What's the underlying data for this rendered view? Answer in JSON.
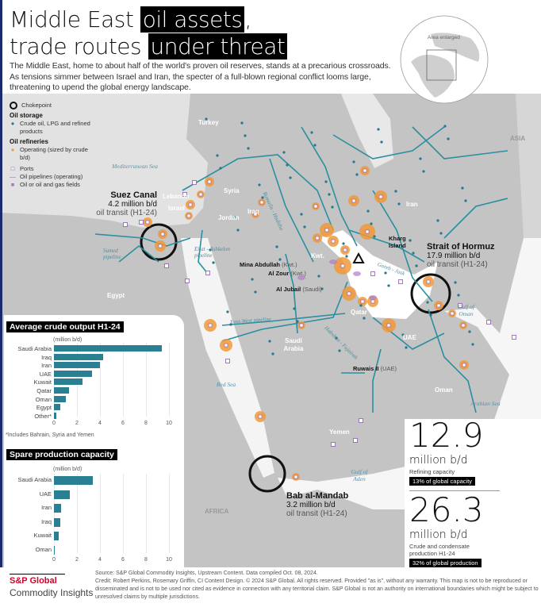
{
  "header": {
    "title_a": "Middle East ",
    "title_hl1": "oil assets",
    "title_b": ",",
    "title_c": "trade routes ",
    "title_hl2": "under threat",
    "intro": "The Middle East, home to about half of the world's proven oil reserves, stands at a precarious crossroads. As tensions simmer between Israel and Iran, the specter of a full-blown regional conflict looms large, threatening to upend the global energy landscape."
  },
  "globe": {
    "label": "Area enlarged"
  },
  "legend": {
    "chokepoint": "Chokepoint",
    "storage_title": "Oil storage",
    "storage": "Crude oil, LPG and refined products",
    "refinery_title": "Oil refineries",
    "refinery": "Operating (sized by crude b/d)",
    "ports": "Ports",
    "pipelines": "Oil pipelines (operating)",
    "fields": "Oil or oil and gas fields"
  },
  "colors": {
    "pipeline": "#2a8fa0",
    "refinery": "#f0993a",
    "port": "#8a5bb0",
    "storage": "#1f7a8c",
    "land": "#c4c4c4",
    "sea": "#e4e4e4",
    "bar": "#2a7f92"
  },
  "countries": [
    "Turkey",
    "Syria",
    "Lebanon",
    "Israel",
    "Jordan",
    "Iraq",
    "Iran",
    "Kwt.",
    "Bahr.",
    "Qatar",
    "UAE",
    "Saudi Arabia",
    "Oman",
    "Yemen",
    "Egypt"
  ],
  "regions": [
    "ASIA",
    "AFRICA"
  ],
  "seas": [
    "Mediterranean Sea",
    "Red Sea",
    "Gulf of Oman",
    "Arabian Sea",
    "Gulf of Aden"
  ],
  "pipelines": [
    "Sumed pipeline",
    "Eilat - Ashkelon pipeline",
    "East-West pipeline",
    "Rumaila - Haditha",
    "Goreh - Jask",
    "Habshan - Fujairah"
  ],
  "callouts": [
    {
      "name": "Kharg Island",
      "country": ""
    },
    {
      "name": "Mina Abdullah",
      "country": "(Kwt.)"
    },
    {
      "name": "Al Zour",
      "country": "(Kwt.)"
    },
    {
      "name": "Al Jubail",
      "country": "(Saudi)"
    },
    {
      "name": "Ruwais II",
      "country": "(UAE)"
    }
  ],
  "chokepoints": [
    {
      "name": "Suez Canal",
      "value": "4.2 million b/d",
      "sub": "oil transit (H1-24)"
    },
    {
      "name": "Strait of Hormuz",
      "value": "17.9 million b/d",
      "sub": "oil transit (H1-24)"
    },
    {
      "name": "Bab al-Mandab",
      "value": "3.2 million b/d",
      "sub": "oil transit (H1-24)"
    }
  ],
  "chart_data": [
    {
      "type": "bar",
      "orientation": "horizontal",
      "title": "Average crude output H1-24",
      "unit": "(million b/d)",
      "categories": [
        "Saudi Arabia",
        "Iraq",
        "Iran",
        "UAE",
        "Kuwait",
        "Qatar",
        "Oman",
        "Egypt",
        "Other*"
      ],
      "values": [
        9.4,
        4.3,
        4.0,
        3.3,
        2.5,
        1.3,
        1.0,
        0.55,
        0.2
      ],
      "xlim": [
        0,
        10
      ],
      "ticks": [
        "0",
        "2",
        "4",
        "6",
        "8",
        "10"
      ],
      "note": "*Includes Bahrain, Syria and Yemen"
    },
    {
      "type": "bar",
      "orientation": "horizontal",
      "title": "Spare production capacity",
      "unit": "(million b/d)",
      "categories": [
        "Saudi Arabia",
        "UAE",
        "Iran",
        "Iraq",
        "Kuwait",
        "Oman"
      ],
      "values": [
        3.4,
        1.4,
        0.65,
        0.55,
        0.4,
        0.1
      ],
      "xlim": [
        0,
        10
      ],
      "ticks": [
        "0",
        "2",
        "4",
        "6",
        "8",
        "10"
      ]
    }
  ],
  "stats": [
    {
      "value": "12.9",
      "unit": "million b/d",
      "desc": "Refining capacity",
      "badge": "13% of global capacity"
    },
    {
      "value": "26.3",
      "unit": "million b/d",
      "desc": "Crude and condensate production H1-24",
      "badge": "32% of global production"
    }
  ],
  "footer": {
    "brand1": "S&P Global",
    "brand2": "Commodity Insights",
    "source": "Source: S&P Global Commodity Insights, Upstream Content. Data compiled Oct. 08, 2024.",
    "credit": "Credit: Robert Perkins, Rosemary Griffin, CI Content Design. © 2024 S&P Global. All rights reserved. Provided \"as is\", without any warranty. This map is not to be reproduced or disseminated and is not to be used nor cited as evidence in connection with any territorial claim. S&P Global is not an authority on international boundaries which might be subject to unresolved claims by multiple jurisdictions."
  }
}
